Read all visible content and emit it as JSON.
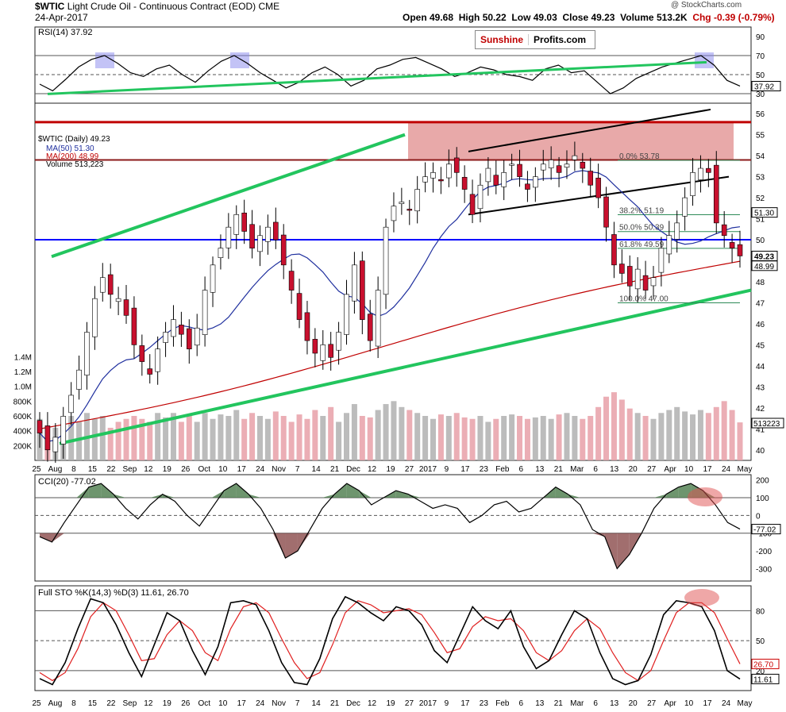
{
  "header": {
    "symbol": "$WTIC",
    "name": "Light Crude Oil - Continuous Contract (EOD)",
    "exchange": "CME",
    "date": "24-Apr-2017",
    "open": "Open 49.68",
    "high": "High 50.22",
    "low": "Low 49.03",
    "close": "Close 49.23",
    "volume": "Volume 513.2K",
    "chg": "Chg -0.39 (-0.79%)",
    "watermark": "@ StockCharts.com"
  },
  "logo": {
    "part1": "Sunshine",
    "part2": "Profits.com"
  },
  "colors": {
    "up": "#ffffff",
    "down": "#c8102e",
    "ma50": "#1f2f9e",
    "ma200": "#c00000",
    "trend": "#22c55e",
    "resist": "#c00000",
    "support": "#0000ff",
    "zone": "#d97070"
  },
  "chart_data": [
    {
      "type": "line",
      "title": "RSI(14) 37.92",
      "y_ticks": [
        "90",
        "70",
        "50",
        "30"
      ],
      "ylim": [
        20,
        100
      ],
      "levels": [
        70,
        50,
        30
      ],
      "last_label": "37.92",
      "series": [
        {
          "name": "RSI",
          "values": [
            40,
            33,
            45,
            58,
            66,
            70,
            62,
            52,
            48,
            56,
            60,
            50,
            42,
            54,
            64,
            70,
            62,
            52,
            44,
            36,
            42,
            52,
            58,
            50,
            38,
            44,
            56,
            60,
            66,
            68,
            62,
            56,
            48,
            52,
            58,
            55,
            50,
            48,
            44,
            56,
            60,
            52,
            54,
            42,
            30,
            36,
            46,
            52,
            58,
            62,
            66,
            70,
            60,
            44,
            38
          ]
        }
      ]
    },
    {
      "type": "candlestick",
      "title": "$WTIC (Daily) 49.23",
      "legend": [
        "MA(50) 51.30",
        "MA(200) 48.99",
        "Volume 513,223"
      ],
      "y_ticks": [
        "56",
        "55",
        "54",
        "53",
        "52",
        "51",
        "50",
        "49",
        "48",
        "47",
        "46",
        "45",
        "44",
        "43",
        "42",
        "41",
        "40"
      ],
      "ylim": [
        39.5,
        56.5
      ],
      "vol_ticks": [
        "1.4M",
        "1.2M",
        "1.0M",
        "800K",
        "600K",
        "400K",
        "200K"
      ],
      "right_labels": [
        "51.30",
        "49.23",
        "48.99",
        "513223"
      ],
      "x_labels": [
        "25",
        "Aug",
        "8",
        "15",
        "22",
        "Sep",
        "12",
        "19",
        "26",
        "Oct",
        "10",
        "17",
        "24",
        "Nov",
        "7",
        "14",
        "21",
        "Dec",
        "12",
        "19",
        "27",
        "2017",
        "9",
        "17",
        "23",
        "Feb",
        "6",
        "13",
        "21",
        "Mar",
        "6",
        "13",
        "20",
        "27",
        "Apr",
        "10",
        "17",
        "24",
        "May"
      ],
      "fib_labels": [
        "0.0% 53.78",
        "38.2% 51.19",
        "50.0% 50.39",
        "61.8% 49.59",
        "100.0% 47.00"
      ],
      "closes": [
        40.8,
        40.0,
        40.6,
        41.6,
        42.6,
        43.8,
        45.6,
        47.2,
        48.2,
        47.4,
        47.2,
        46.4,
        45.0,
        44.2,
        43.6,
        44.8,
        45.6,
        46.2,
        45.5,
        44.8,
        45.8,
        47.6,
        48.8,
        49.6,
        50.6,
        51.2,
        50.4,
        49.6,
        50.2,
        50.6,
        50.0,
        48.8,
        47.6,
        46.2,
        45.2,
        44.6,
        45.0,
        44.4,
        45.6,
        47.4,
        48.8,
        46.2,
        45.2,
        47.6,
        50.6,
        51.6,
        51.8,
        51.4,
        52.4,
        53.0,
        53.2,
        52.8,
        53.6,
        53.2,
        52.4,
        51.2,
        52.6,
        53.4,
        52.6,
        53.2,
        53.6,
        53.0,
        52.4,
        53.0,
        53.6,
        53.8,
        53.2,
        53.6,
        54.0,
        53.4,
        52.6,
        52.0,
        50.6,
        48.8,
        48.4,
        47.8,
        48.6,
        47.6,
        48.2,
        49.6,
        50.2,
        50.8,
        52.0,
        53.2,
        53.4,
        53.2,
        50.8,
        50.2,
        49.6,
        49.23
      ],
      "volumes": [
        560,
        300,
        440,
        500,
        600,
        520,
        640,
        560,
        600,
        440,
        520,
        560,
        600,
        560,
        520,
        640,
        580,
        640,
        520,
        600,
        520,
        640,
        560,
        620,
        600,
        680,
        560,
        640,
        600,
        560,
        660,
        600,
        520,
        620,
        560,
        680,
        600,
        720,
        520,
        640,
        760,
        600,
        580,
        680,
        760,
        800,
        720,
        680,
        640,
        600,
        560,
        620,
        600,
        640,
        580,
        560,
        600,
        520,
        560,
        600,
        620,
        600,
        560,
        580,
        600,
        560,
        620,
        640,
        600,
        560,
        600,
        720,
        860,
        920,
        820,
        700,
        640,
        600,
        560,
        640,
        680,
        720,
        660,
        620,
        680,
        640,
        720,
        800,
        680,
        513
      ]
    },
    {
      "type": "line",
      "title": "CCI(20) -77.02",
      "y_ticks": [
        "200",
        "100",
        "0",
        "-100",
        "-200",
        "-300"
      ],
      "ylim": [
        -370,
        230
      ],
      "levels": [
        100,
        0,
        -100
      ],
      "last_label": "-77.02",
      "series": [
        {
          "name": "CCI",
          "values": [
            -120,
            -150,
            -40,
            60,
            160,
            180,
            120,
            40,
            -20,
            60,
            120,
            80,
            0,
            -60,
            40,
            140,
            180,
            120,
            40,
            -80,
            -240,
            -200,
            -80,
            40,
            120,
            180,
            140,
            60,
            100,
            140,
            120,
            80,
            40,
            60,
            40,
            -40,
            0,
            60,
            80,
            20,
            40,
            100,
            160,
            120,
            60,
            -80,
            -120,
            -300,
            -220,
            -100,
            40,
            120,
            160,
            180,
            140,
            60,
            -40,
            -77
          ]
        }
      ]
    },
    {
      "type": "line",
      "title": "Full STO %K(14,3) %D(3) 11.61, 26.70",
      "y_ticks": [
        "80",
        "50",
        "20"
      ],
      "ylim": [
        0,
        105
      ],
      "levels": [
        80,
        50,
        20
      ],
      "last_labels": [
        "26.70",
        "11.61"
      ],
      "series": [
        {
          "name": "%K",
          "values": [
            12,
            6,
            28,
            62,
            92,
            88,
            66,
            38,
            14,
            46,
            78,
            70,
            40,
            16,
            44,
            88,
            90,
            86,
            60,
            28,
            8,
            6,
            32,
            72,
            94,
            88,
            78,
            70,
            84,
            80,
            66,
            40,
            28,
            56,
            84,
            70,
            62,
            80,
            44,
            22,
            30,
            56,
            80,
            72,
            38,
            12,
            6,
            10,
            36,
            76,
            90,
            88,
            84,
            60,
            20,
            11.61
          ]
        },
        {
          "name": "%D",
          "values": [
            18,
            10,
            18,
            42,
            74,
            88,
            80,
            56,
            30,
            32,
            56,
            70,
            60,
            38,
            30,
            62,
            84,
            88,
            78,
            52,
            28,
            12,
            18,
            46,
            78,
            90,
            86,
            78,
            80,
            82,
            76,
            58,
            38,
            42,
            64,
            74,
            70,
            72,
            60,
            38,
            30,
            40,
            60,
            72,
            62,
            38,
            18,
            10,
            20,
            50,
            78,
            88,
            88,
            78,
            52,
            26.7
          ]
        }
      ]
    }
  ]
}
